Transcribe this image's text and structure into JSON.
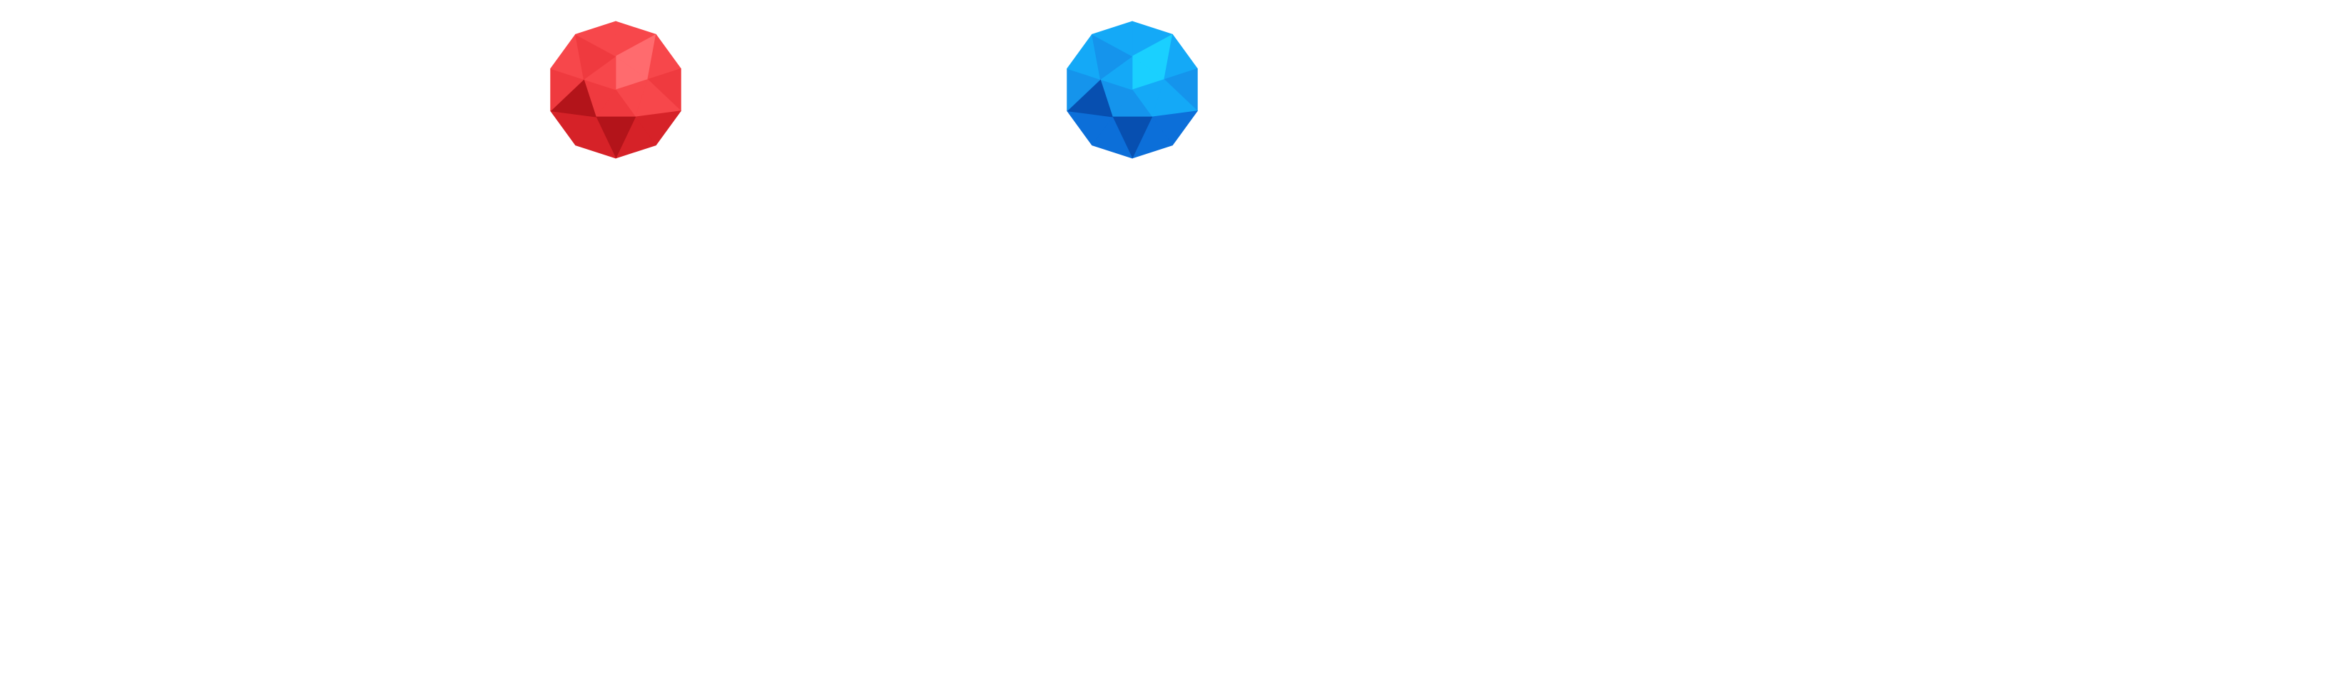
{
  "gems": [
    {
      "icon": "red-faceted-sphere-icon",
      "colors": {
        "light": "#ff6b6e",
        "mid": "#f7474b",
        "base": "#ef3a3f",
        "dark": "#d62228",
        "deep": "#b3141a"
      }
    },
    {
      "icon": "blue-faceted-sphere-icon",
      "colors": {
        "light": "#1ad0ff",
        "mid": "#14a9f7",
        "base": "#1594ec",
        "dark": "#0c6fd9",
        "deep": "#074fb0"
      }
    }
  ],
  "background": "#ffffff"
}
